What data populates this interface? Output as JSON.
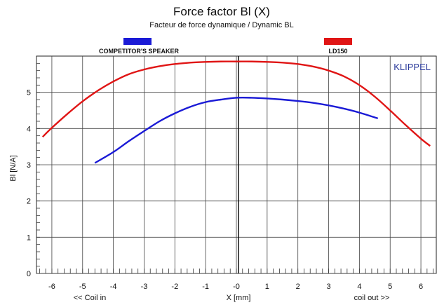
{
  "chart_data": {
    "type": "line",
    "title": "Force factor Bl (X)",
    "subtitle": "Facteur de force dynamique / Dynamic BL",
    "xlabel": "X [mm]",
    "ylabel": "Bl [N/A]",
    "x_left_note": "<< Coil in",
    "x_right_note": "coil out >>",
    "brand": "KLIPPEL",
    "xlim": [
      -6.5,
      6.5
    ],
    "ylim": [
      0,
      6
    ],
    "xticks": [
      "-6",
      "-5",
      "-4",
      "-3",
      "-2",
      "-1",
      "-0",
      "1",
      "2",
      "3",
      "4",
      "5",
      "6"
    ],
    "yticks": [
      "0",
      "1",
      "2",
      "3",
      "4",
      "5"
    ],
    "grid": true,
    "legend_position": "top",
    "series": [
      {
        "name": "COMPETITOR'S SPEAKER",
        "color": "#1a1ad6",
        "x": [
          -4.6,
          -4.0,
          -3.5,
          -3.0,
          -2.5,
          -2.0,
          -1.5,
          -1.0,
          -0.5,
          0.0,
          0.5,
          1.0,
          1.5,
          2.0,
          2.5,
          3.0,
          3.5,
          4.0,
          4.6
        ],
        "y": [
          3.05,
          3.35,
          3.65,
          3.93,
          4.2,
          4.42,
          4.6,
          4.73,
          4.8,
          4.85,
          4.85,
          4.83,
          4.8,
          4.76,
          4.71,
          4.64,
          4.55,
          4.44,
          4.28
        ]
      },
      {
        "name": "LD150",
        "color": "#e01515",
        "x": [
          -6.3,
          -6.0,
          -5.5,
          -5.0,
          -4.5,
          -4.0,
          -3.5,
          -3.0,
          -2.5,
          -2.0,
          -1.5,
          -1.0,
          -0.5,
          0.0,
          0.5,
          1.0,
          1.5,
          2.0,
          2.5,
          3.0,
          3.5,
          4.0,
          4.5,
          5.0,
          5.5,
          6.0,
          6.3
        ],
        "y": [
          3.77,
          4.02,
          4.4,
          4.75,
          5.05,
          5.3,
          5.5,
          5.63,
          5.72,
          5.78,
          5.82,
          5.84,
          5.85,
          5.85,
          5.85,
          5.84,
          5.82,
          5.78,
          5.71,
          5.6,
          5.44,
          5.2,
          4.88,
          4.5,
          4.1,
          3.72,
          3.52
        ]
      }
    ]
  }
}
